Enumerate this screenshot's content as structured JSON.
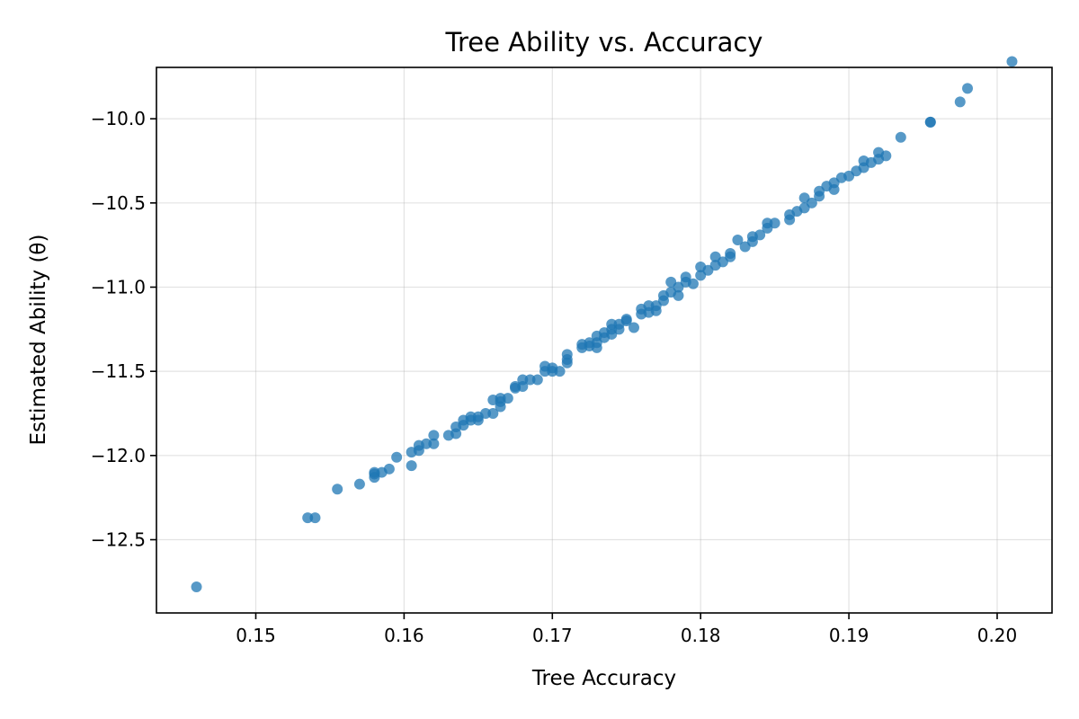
{
  "chart_data": {
    "type": "scatter",
    "title": "Tree Ability vs. Accuracy",
    "xlabel": "Tree Accuracy",
    "ylabel": "Estimated Ability (θ)",
    "xlim": [
      0.1433,
      0.2037
    ],
    "ylim": [
      -12.935,
      -9.695
    ],
    "xticks": [
      0.15,
      0.16,
      0.17,
      0.18,
      0.19,
      0.2
    ],
    "xtick_labels": [
      "0.15",
      "0.16",
      "0.17",
      "0.18",
      "0.19",
      "0.20"
    ],
    "yticks": [
      -12.5,
      -12.0,
      -11.5,
      -11.0,
      -10.5,
      -10.0
    ],
    "ytick_labels": [
      "−12.5",
      "−12.0",
      "−11.5",
      "−11.0",
      "−10.5",
      "−10.0"
    ],
    "grid": true,
    "color": "#1f77b4",
    "points": [
      [
        0.146,
        -12.78
      ],
      [
        0.1535,
        -12.37
      ],
      [
        0.154,
        -12.37
      ],
      [
        0.1555,
        -12.2
      ],
      [
        0.157,
        -12.17
      ],
      [
        0.158,
        -12.13
      ],
      [
        0.158,
        -12.11
      ],
      [
        0.158,
        -12.1
      ],
      [
        0.1585,
        -12.1
      ],
      [
        0.159,
        -12.08
      ],
      [
        0.1595,
        -12.01
      ],
      [
        0.1605,
        -11.98
      ],
      [
        0.1605,
        -12.06
      ],
      [
        0.161,
        -11.97
      ],
      [
        0.161,
        -11.94
      ],
      [
        0.1615,
        -11.93
      ],
      [
        0.162,
        -11.93
      ],
      [
        0.162,
        -11.88
      ],
      [
        0.163,
        -11.88
      ],
      [
        0.1635,
        -11.87
      ],
      [
        0.1635,
        -11.83
      ],
      [
        0.164,
        -11.82
      ],
      [
        0.164,
        -11.79
      ],
      [
        0.1645,
        -11.77
      ],
      [
        0.1645,
        -11.79
      ],
      [
        0.165,
        -11.79
      ],
      [
        0.165,
        -11.77
      ],
      [
        0.1655,
        -11.75
      ],
      [
        0.166,
        -11.75
      ],
      [
        0.166,
        -11.67
      ],
      [
        0.1665,
        -11.68
      ],
      [
        0.1665,
        -11.66
      ],
      [
        0.1665,
        -11.71
      ],
      [
        0.167,
        -11.66
      ],
      [
        0.1675,
        -11.6
      ],
      [
        0.1675,
        -11.59
      ],
      [
        0.168,
        -11.59
      ],
      [
        0.168,
        -11.55
      ],
      [
        0.1685,
        -11.55
      ],
      [
        0.169,
        -11.55
      ],
      [
        0.1695,
        -11.5
      ],
      [
        0.1695,
        -11.47
      ],
      [
        0.17,
        -11.5
      ],
      [
        0.17,
        -11.48
      ],
      [
        0.1705,
        -11.5
      ],
      [
        0.171,
        -11.45
      ],
      [
        0.171,
        -11.43
      ],
      [
        0.171,
        -11.4
      ],
      [
        0.172,
        -11.36
      ],
      [
        0.172,
        -11.34
      ],
      [
        0.1725,
        -11.35
      ],
      [
        0.1725,
        -11.33
      ],
      [
        0.173,
        -11.36
      ],
      [
        0.173,
        -11.33
      ],
      [
        0.173,
        -11.29
      ],
      [
        0.1735,
        -11.3
      ],
      [
        0.1735,
        -11.27
      ],
      [
        0.174,
        -11.28
      ],
      [
        0.174,
        -11.25
      ],
      [
        0.174,
        -11.22
      ],
      [
        0.1745,
        -11.25
      ],
      [
        0.1745,
        -11.22
      ],
      [
        0.175,
        -11.2
      ],
      [
        0.175,
        -11.19
      ],
      [
        0.1755,
        -11.24
      ],
      [
        0.176,
        -11.16
      ],
      [
        0.176,
        -11.13
      ],
      [
        0.1765,
        -11.15
      ],
      [
        0.1765,
        -11.11
      ],
      [
        0.177,
        -11.14
      ],
      [
        0.177,
        -11.11
      ],
      [
        0.1775,
        -11.08
      ],
      [
        0.1775,
        -11.05
      ],
      [
        0.178,
        -11.03
      ],
      [
        0.178,
        -10.97
      ],
      [
        0.1785,
        -11.05
      ],
      [
        0.1785,
        -11.0
      ],
      [
        0.179,
        -10.97
      ],
      [
        0.179,
        -10.94
      ],
      [
        0.1795,
        -10.98
      ],
      [
        0.18,
        -10.93
      ],
      [
        0.18,
        -10.88
      ],
      [
        0.1805,
        -10.9
      ],
      [
        0.181,
        -10.87
      ],
      [
        0.181,
        -10.82
      ],
      [
        0.1815,
        -10.85
      ],
      [
        0.182,
        -10.82
      ],
      [
        0.182,
        -10.8
      ],
      [
        0.1825,
        -10.72
      ],
      [
        0.183,
        -10.76
      ],
      [
        0.1835,
        -10.73
      ],
      [
        0.1835,
        -10.7
      ],
      [
        0.184,
        -10.69
      ],
      [
        0.1845,
        -10.65
      ],
      [
        0.1845,
        -10.62
      ],
      [
        0.185,
        -10.62
      ],
      [
        0.186,
        -10.6
      ],
      [
        0.186,
        -10.57
      ],
      [
        0.1865,
        -10.55
      ],
      [
        0.187,
        -10.53
      ],
      [
        0.187,
        -10.47
      ],
      [
        0.1875,
        -10.5
      ],
      [
        0.188,
        -10.46
      ],
      [
        0.188,
        -10.43
      ],
      [
        0.1885,
        -10.4
      ],
      [
        0.189,
        -10.42
      ],
      [
        0.189,
        -10.38
      ],
      [
        0.1895,
        -10.35
      ],
      [
        0.19,
        -10.34
      ],
      [
        0.1905,
        -10.31
      ],
      [
        0.191,
        -10.29
      ],
      [
        0.191,
        -10.25
      ],
      [
        0.1915,
        -10.26
      ],
      [
        0.192,
        -10.24
      ],
      [
        0.192,
        -10.2
      ],
      [
        0.1925,
        -10.22
      ],
      [
        0.1935,
        -10.11
      ],
      [
        0.1955,
        -10.02
      ],
      [
        0.1955,
        -10.02
      ],
      [
        0.1975,
        -9.9
      ],
      [
        0.198,
        -9.82
      ],
      [
        0.201,
        -9.66
      ]
    ]
  }
}
